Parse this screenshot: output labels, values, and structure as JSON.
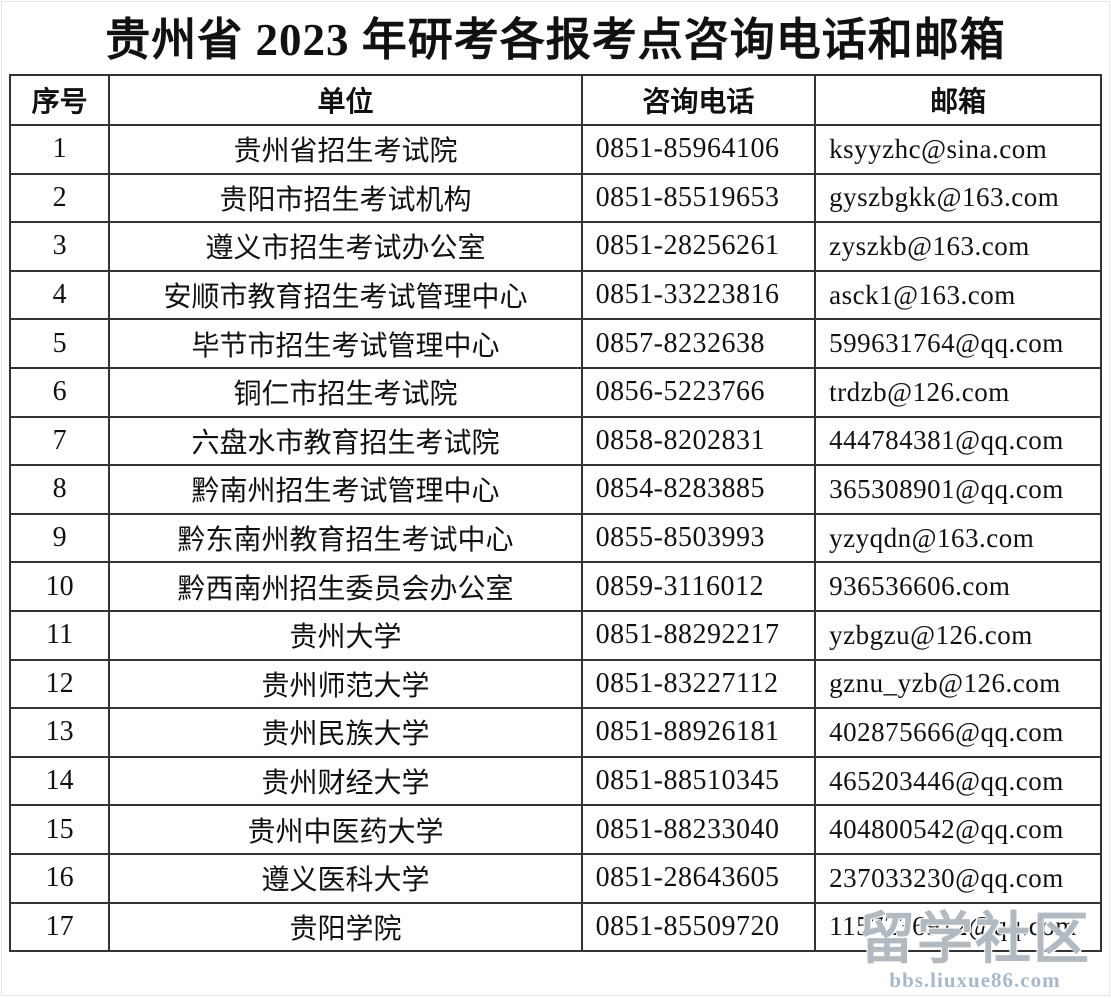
{
  "page": {
    "title": "贵州省 2023 年研考各报考点咨询电话和邮箱"
  },
  "table": {
    "headers": {
      "no": "序号",
      "unit": "单位",
      "phone": "咨询电话",
      "email": "邮箱"
    },
    "rows": [
      {
        "no": "1",
        "unit": "贵州省招生考试院",
        "phone": "0851-85964106",
        "email": "ksyyzhc@sina.com"
      },
      {
        "no": "2",
        "unit": "贵阳市招生考试机构",
        "phone": "0851-85519653",
        "email": "gyszbgkk@163.com"
      },
      {
        "no": "3",
        "unit": "遵义市招生考试办公室",
        "phone": "0851-28256261",
        "email": "zyszkb@163.com"
      },
      {
        "no": "4",
        "unit": "安顺市教育招生考试管理中心",
        "phone": "0851-33223816",
        "email": "asck1@163.com"
      },
      {
        "no": "5",
        "unit": "毕节市招生考试管理中心",
        "phone": "0857-8232638",
        "email": "599631764@qq.com"
      },
      {
        "no": "6",
        "unit": "铜仁市招生考试院",
        "phone": "0856-5223766",
        "email": "trdzb@126.com"
      },
      {
        "no": "7",
        "unit": "六盘水市教育招生考试院",
        "phone": "0858-8202831",
        "email": "444784381@qq.com"
      },
      {
        "no": "8",
        "unit": "黔南州招生考试管理中心",
        "phone": "0854-8283885",
        "email": "365308901@qq.com"
      },
      {
        "no": "9",
        "unit": "黔东南州教育招生考试中心",
        "phone": "0855-8503993",
        "email": "yzyqdn@163.com"
      },
      {
        "no": "10",
        "unit": "黔西南州招生委员会办公室",
        "phone": "0859-3116012",
        "email": "936536606.com"
      },
      {
        "no": "11",
        "unit": "贵州大学",
        "phone": "0851-88292217",
        "email": "yzbgzu@126.com"
      },
      {
        "no": "12",
        "unit": "贵州师范大学",
        "phone": "0851-83227112",
        "email": "gznu_yzb@126.com"
      },
      {
        "no": "13",
        "unit": "贵州民族大学",
        "phone": "0851-88926181",
        "email": "402875666@qq.com"
      },
      {
        "no": "14",
        "unit": "贵州财经大学",
        "phone": "0851-88510345",
        "email": "465203446@qq.com"
      },
      {
        "no": "15",
        "unit": "贵州中医药大学",
        "phone": "0851-88233040",
        "email": "404800542@qq.com"
      },
      {
        "no": "16",
        "unit": "遵义医科大学",
        "phone": "0851-28643605",
        "email": "237033230@qq.com"
      },
      {
        "no": "17",
        "unit": "贵阳学院",
        "phone": "0851-85509720",
        "email": "1157236912@qq.com"
      }
    ]
  },
  "watermark": {
    "site_name": "留学社区",
    "site_url": "bbs.liuxue86.com"
  },
  "colors": {
    "border": "#333333",
    "text": "#111111",
    "watermark_gray": "rgba(158,168,178,0.80)"
  }
}
